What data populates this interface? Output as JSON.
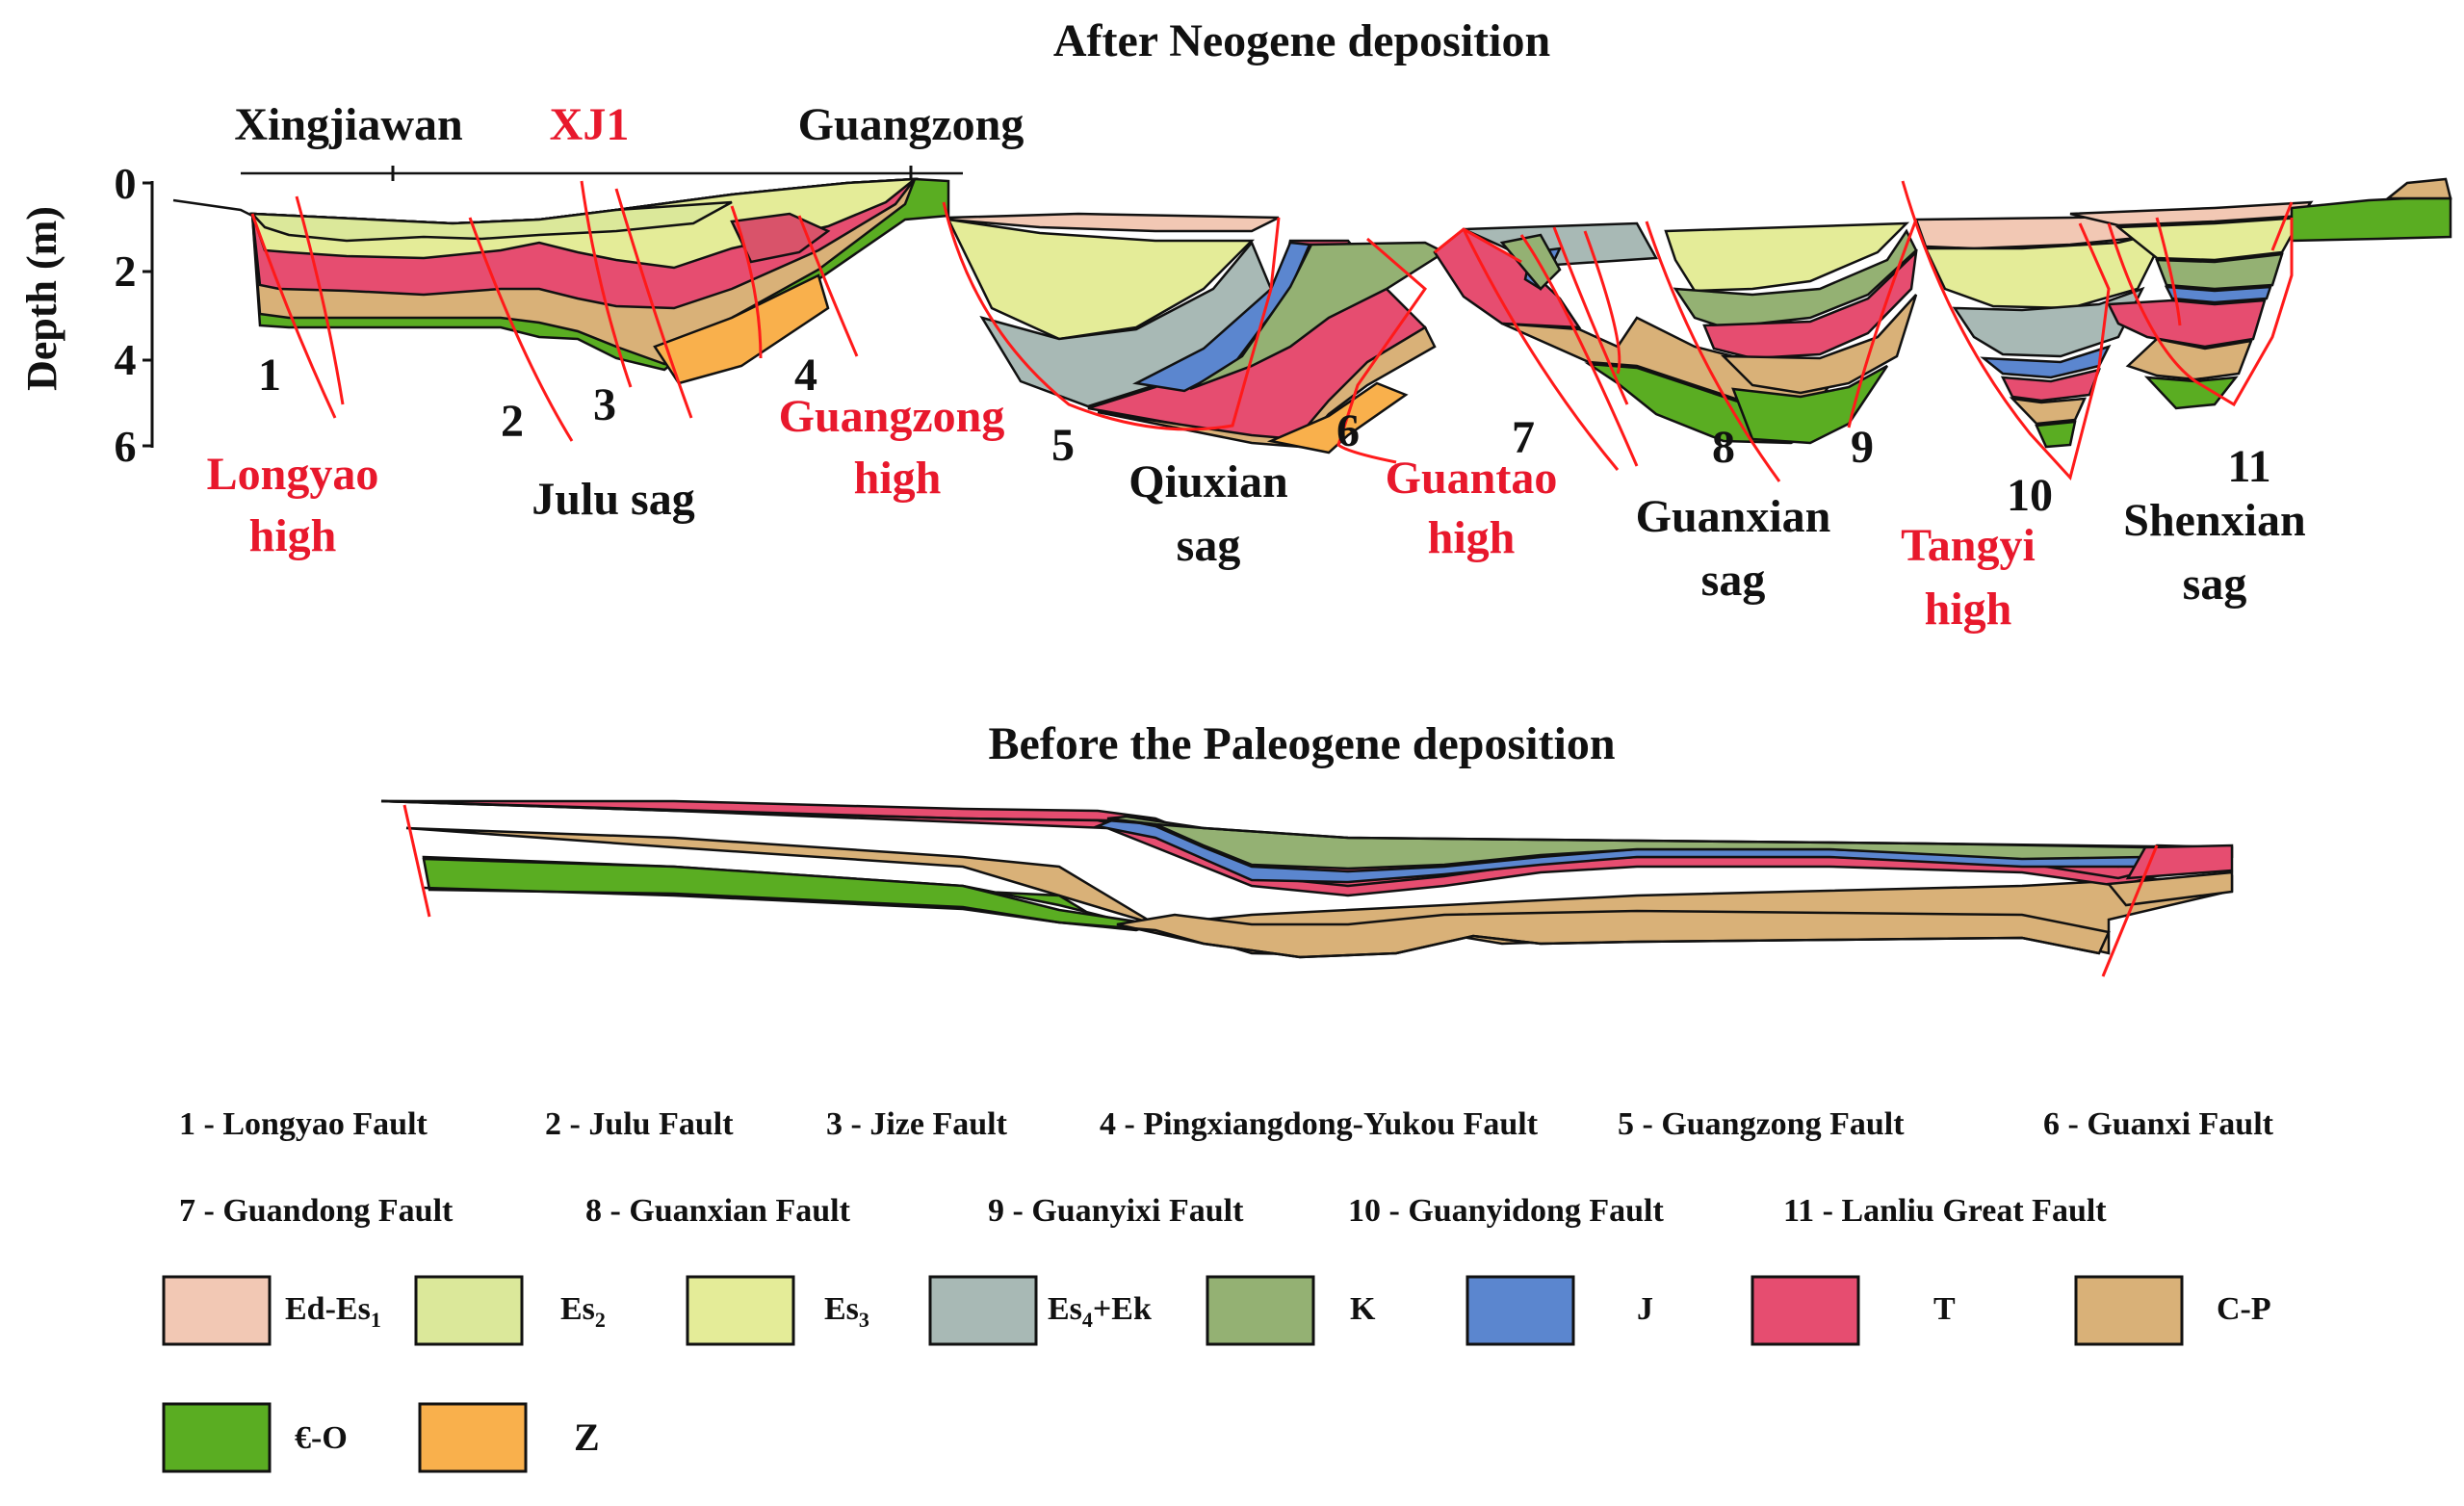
{
  "titles": {
    "top": "After Neogene deposition",
    "bottom": "Before the Paleogene deposition"
  },
  "axis": {
    "ylabel": "Depth (m)",
    "ticks": [
      "0",
      "2",
      "4",
      "6"
    ]
  },
  "wells": [
    {
      "name": "Xingjiawan"
    },
    {
      "name": "XJ1"
    },
    {
      "name": "Guangzong"
    }
  ],
  "fault_numbers": [
    "1",
    "2",
    "3",
    "4",
    "5",
    "6",
    "7",
    "8",
    "9",
    "10",
    "11"
  ],
  "units": [
    {
      "lines": [
        "Longyao",
        "high"
      ],
      "kind": "high"
    },
    {
      "lines": [
        "Julu  sag"
      ],
      "kind": "sag"
    },
    {
      "lines": [
        "Guangzong",
        "high"
      ],
      "kind": "high"
    },
    {
      "lines": [
        "Qiuxian",
        "sag"
      ],
      "kind": "sag"
    },
    {
      "lines": [
        "Guantao",
        "high"
      ],
      "kind": "high"
    },
    {
      "lines": [
        "Guanxian",
        "sag"
      ],
      "kind": "sag"
    },
    {
      "lines": [
        "Tangyi",
        "high"
      ],
      "kind": "high"
    },
    {
      "lines": [
        "Shenxian",
        "sag"
      ],
      "kind": "sag"
    }
  ],
  "fault_legend": [
    "1 - Longyao Fault",
    "2 - Julu Fault",
    "3 - Jize Fault",
    "4 - Pingxiangdong-Yukou Fault",
    "5 - Guangzong Fault",
    "6 - Guanxi Fault",
    "7 - Guandong Fault",
    "8 - Guanxian Fault",
    "9 - Guanyixi Fault",
    "10 - Guanyidong Fault",
    "11 - Lanliu Great Fault"
  ],
  "strata_legend": [
    {
      "main": "Ed-Es",
      "sub": "1",
      "color": "#f2c8b4"
    },
    {
      "main": "Es",
      "sub": "2",
      "color": "#dbe89a"
    },
    {
      "main": "Es",
      "sub": "3",
      "color": "#e4ec98"
    },
    {
      "main": "Es",
      "sub": "4",
      "suffix": "+Ek",
      "color": "#a8b9b5"
    },
    {
      "main": "K",
      "color": "#94b173"
    },
    {
      "main": "J",
      "color": "#5b86cf"
    },
    {
      "main": "T",
      "color": "#e64d70"
    },
    {
      "main": "C-P",
      "color": "#d9b178"
    },
    {
      "main": "€-O",
      "color": "#5aad22"
    },
    {
      "main": "Z",
      "color": "#f9b04c"
    }
  ],
  "colors": {
    "fault": "#ff1a1a",
    "high_label": "#e8182c",
    "sag_label": "#111111"
  }
}
